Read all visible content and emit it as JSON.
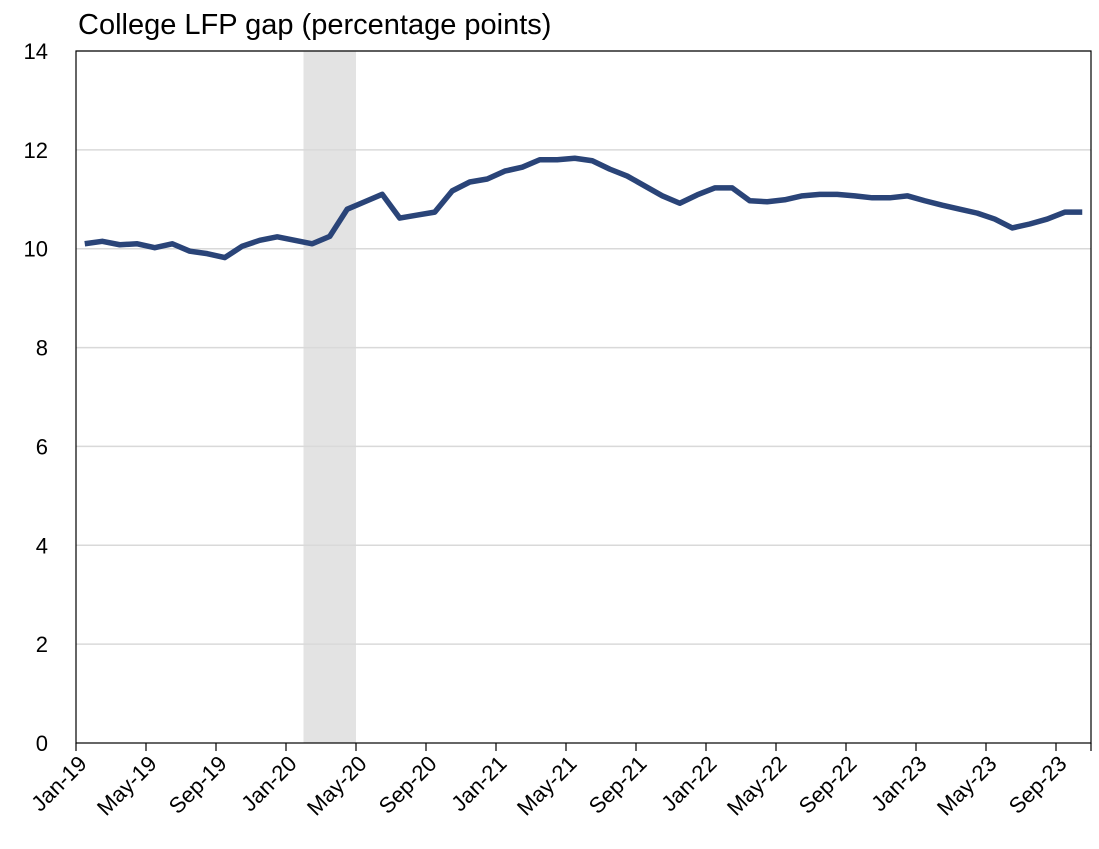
{
  "chart_data": {
    "type": "line",
    "title": "College LFP gap (percentage points)",
    "categories": [
      "Jan-19",
      null,
      null,
      null,
      "May-19",
      null,
      null,
      null,
      "Sep-19",
      null,
      null,
      null,
      "Jan-20",
      null,
      null,
      null,
      "May-20",
      null,
      null,
      null,
      "Sep-20",
      null,
      null,
      null,
      "Jan-21",
      null,
      null,
      null,
      "May-21",
      null,
      null,
      null,
      "Sep-21",
      null,
      null,
      null,
      "Jan-22",
      null,
      null,
      null,
      "May-22",
      null,
      null,
      null,
      "Sep-22",
      null,
      null,
      null,
      "Jan-23",
      null,
      null,
      null,
      "May-23",
      null,
      null,
      null,
      "Sep-23",
      null
    ],
    "series": [
      {
        "color": "#2a4478",
        "values": [
          10.1,
          10.15,
          10.08,
          10.1,
          10.02,
          10.1,
          9.95,
          9.9,
          9.82,
          10.05,
          10.17,
          10.24,
          10.17,
          10.1,
          10.25,
          10.8,
          10.95,
          11.1,
          10.62,
          10.68,
          10.74,
          11.17,
          11.35,
          11.41,
          11.57,
          11.65,
          11.8,
          11.8,
          11.83,
          11.78,
          11.61,
          11.47,
          11.27,
          11.07,
          10.92,
          11.09,
          11.23,
          11.23,
          10.97,
          10.95,
          10.99,
          11.07,
          11.1,
          11.1,
          11.07,
          11.03,
          11.03,
          11.07,
          10.97,
          10.88,
          10.8,
          10.72,
          10.6,
          10.42,
          10.5,
          10.6,
          10.74,
          10.74
        ]
      }
    ],
    "ylim": [
      0,
      14
    ],
    "yticks": [
      0,
      2,
      4,
      6,
      8,
      10,
      12,
      14
    ],
    "grid": true,
    "shaded_categories": [
      13,
      15
    ],
    "shade_color": "#e3e3e3"
  }
}
